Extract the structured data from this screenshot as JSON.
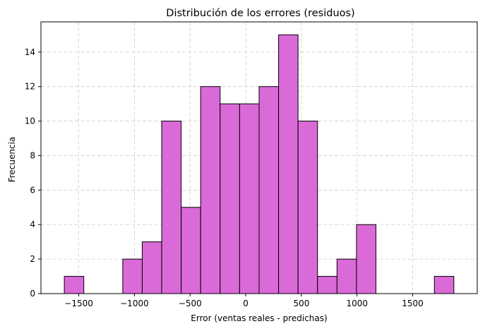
{
  "chart_data": {
    "type": "bar",
    "title": "Distribución de los errores (residuos)",
    "xlabel": "Error (ventas reales - predichas)",
    "ylabel": "Frecuencia",
    "bin_edges": [
      -1630,
      -1455,
      -1280,
      -1105,
      -930,
      -755,
      -580,
      -405,
      -230,
      -55,
      120,
      295,
      470,
      645,
      820,
      995,
      1170,
      1345,
      1520,
      1695,
      1870
    ],
    "counts": [
      1,
      0,
      0,
      2,
      3,
      10,
      5,
      12,
      11,
      11,
      12,
      15,
      10,
      1,
      2,
      4,
      0,
      0,
      0,
      1
    ],
    "xlim": [
      -1840,
      2080
    ],
    "ylim": [
      0,
      15.75
    ],
    "xticks": [
      -1500,
      -1000,
      -500,
      0,
      500,
      1000,
      1500
    ],
    "xtick_labels": [
      "−1500",
      "−1000",
      "−500",
      "0",
      "500",
      "1000",
      "1500"
    ],
    "yticks": [
      0,
      2,
      4,
      6,
      8,
      10,
      12,
      14
    ],
    "ytick_labels": [
      "0",
      "2",
      "4",
      "6",
      "8",
      "10",
      "12",
      "14"
    ],
    "grid": true,
    "bar_color": "#da6ad8",
    "edge_color": "#000000"
  }
}
